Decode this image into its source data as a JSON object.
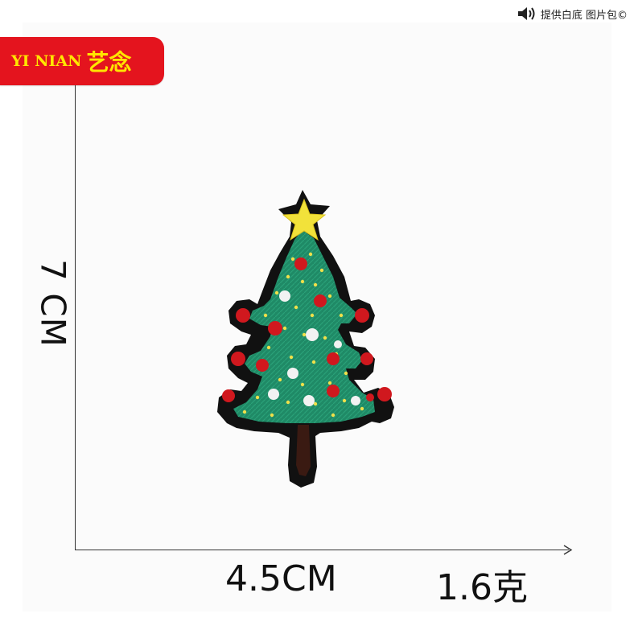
{
  "watermark": {
    "icon": "speaker-icon",
    "text": "提供白底 图片包©"
  },
  "brand": {
    "latin": "YI NIAN",
    "chinese": "艺念",
    "background_color": "#e4141e",
    "text_color": "#ffe600"
  },
  "dimensions": {
    "height": "7 CM",
    "width": "4.5CM",
    "weight": "1.6克"
  },
  "product": {
    "subject": "christmas-tree-patch-icon",
    "colors": {
      "border": "#111111",
      "tree": "#1f8a66",
      "star": "#f2e23a",
      "trunk": "#3a1a12",
      "ornament_red": "#d0181e",
      "ornament_white": "#f2f2f2",
      "dots": "#f0e04a"
    }
  }
}
